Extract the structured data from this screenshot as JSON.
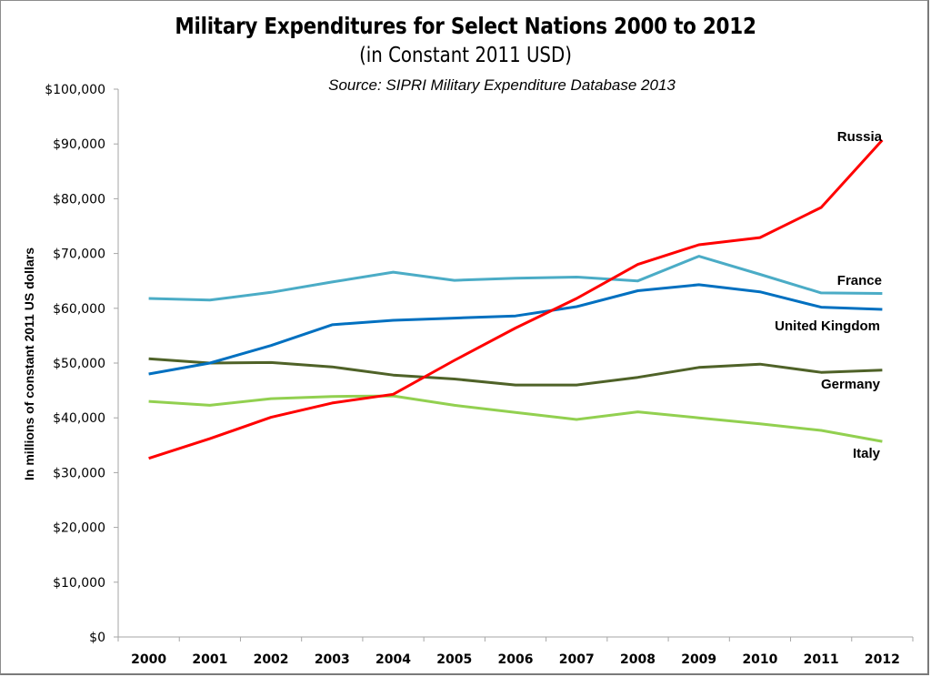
{
  "chart_data": {
    "type": "line",
    "title": "Military Expenditures for Select Nations 2000 to 2012",
    "subtitle": "(in Constant 2011 USD)",
    "source": "Source: SIPRI Military Expenditure Database 2013",
    "xlabel": "",
    "ylabel": "In millions of constant 2011 US dollars",
    "ylim": [
      0,
      100000
    ],
    "yticks": [
      0,
      10000,
      20000,
      30000,
      40000,
      50000,
      60000,
      70000,
      80000,
      90000,
      100000
    ],
    "ytick_labels": [
      "$0",
      "$10,000",
      "$20,000",
      "$30,000",
      "$40,000",
      "$50,000",
      "$60,000",
      "$70,000",
      "$80,000",
      "$90,000",
      "$100,000"
    ],
    "categories": [
      "2000",
      "2001",
      "2002",
      "2003",
      "2004",
      "2005",
      "2006",
      "2007",
      "2008",
      "2009",
      "2010",
      "2011",
      "2012"
    ],
    "grid": false,
    "legend": "inline labels at line ends (right)",
    "series": [
      {
        "name": "Russia",
        "color": "#ff0000",
        "values": [
          32600,
          36200,
          40100,
          42700,
          44300,
          50500,
          56400,
          61800,
          68000,
          71600,
          72900,
          78400,
          90700
        ]
      },
      {
        "name": "France",
        "color": "#4bacc6",
        "values": [
          61800,
          61500,
          62900,
          64800,
          66600,
          65100,
          65500,
          65700,
          65000,
          69500,
          66200,
          62800,
          62700
        ]
      },
      {
        "name": "United Kingdom",
        "color": "#0070c0",
        "values": [
          48000,
          50000,
          53200,
          57000,
          57800,
          58200,
          58600,
          60300,
          63200,
          64300,
          63000,
          60200,
          59800
        ]
      },
      {
        "name": "Germany",
        "color": "#4f6228",
        "values": [
          50800,
          50000,
          50100,
          49300,
          47800,
          47100,
          46000,
          46000,
          47400,
          49200,
          49800,
          48300,
          48700
        ]
      },
      {
        "name": "Italy",
        "color": "#92d050",
        "values": [
          43000,
          42300,
          43500,
          43900,
          44000,
          42300,
          41000,
          39700,
          41100,
          40000,
          38900,
          37700,
          35700
        ]
      }
    ]
  }
}
